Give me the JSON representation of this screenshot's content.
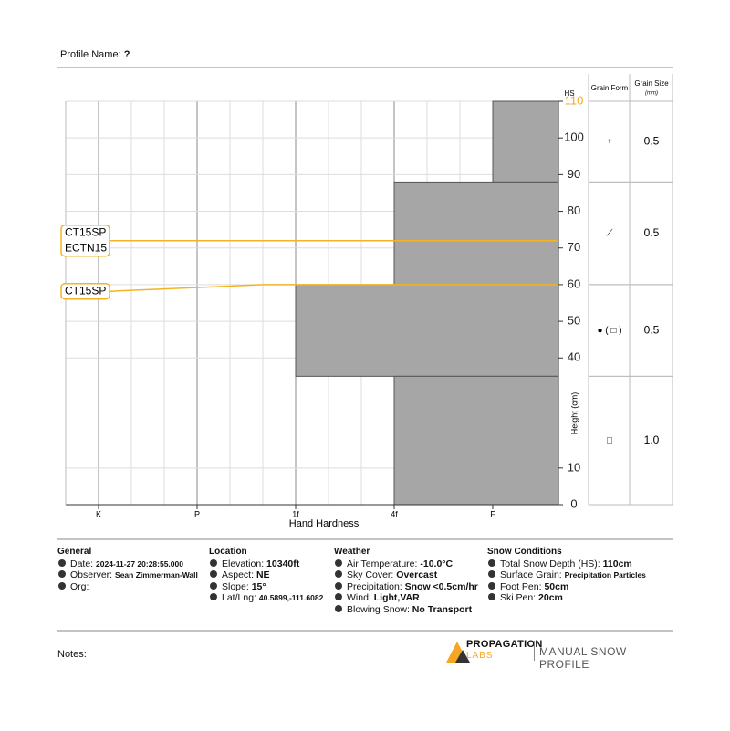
{
  "profile": {
    "label": "Profile Name:",
    "value": "?"
  },
  "chart_data": {
    "type": "snow-profile",
    "x_label": "Hand Hardness",
    "y_label": "Height (cm)",
    "hs_label": "HS",
    "categories": [
      "K",
      "P",
      "1f",
      "4f",
      "F"
    ],
    "ylim": [
      0,
      110
    ],
    "yticks": [
      0,
      10,
      40,
      50,
      60,
      70,
      80,
      90,
      100,
      110
    ],
    "grid": true,
    "layer_color": "#a6a6a6",
    "test_color": "#f5b324",
    "hs_color": "#f5a623",
    "layers": [
      {
        "top": 110,
        "bottom": 88,
        "hardness": "F",
        "grain_form": "+",
        "grain_size": "0.5"
      },
      {
        "top": 88,
        "bottom": 60,
        "hardness": "4f",
        "grain_form": "⟋",
        "grain_size": "0.5"
      },
      {
        "top": 60,
        "bottom": 35,
        "hardness": "1f",
        "grain_form": "● ( □ )",
        "grain_size": "0.5"
      },
      {
        "top": 35,
        "bottom": 0,
        "hardness": "4f",
        "grain_form": "□",
        "grain_size": "1.0"
      }
    ],
    "tests": [
      {
        "labels": [
          "CT15SP",
          "ECTN15"
        ],
        "height": 72
      },
      {
        "labels": [
          "CT15SP"
        ],
        "height": 60
      }
    ]
  },
  "grain_table": {
    "form_header": "Grain Form",
    "size_header": "Grain Size",
    "size_unit": "(mm)"
  },
  "info": [
    {
      "title": "General",
      "items": [
        {
          "label": "Date:",
          "value": "2024-11-27 20:28:55.000",
          "small": true
        },
        {
          "label": "Observer:",
          "value": "Sean Zimmerman-Wall",
          "small": true
        },
        {
          "label": "Org:",
          "value": ""
        }
      ]
    },
    {
      "title": "Location",
      "items": [
        {
          "label": "Elevation:",
          "value": "10340ft"
        },
        {
          "label": "Aspect:",
          "value": "NE"
        },
        {
          "label": "Slope:",
          "value": "15°"
        },
        {
          "label": "Lat/Lng:",
          "value": "40.5899,-111.6082",
          "small": true
        }
      ]
    },
    {
      "title": "Weather",
      "items": [
        {
          "label": "Air Temperature:",
          "value": "-10.0°C"
        },
        {
          "label": "Sky Cover:",
          "value": "Overcast"
        },
        {
          "label": "Precipitation:",
          "value": "Snow <0.5cm/hr"
        },
        {
          "label": "Wind:",
          "value": "Light,VAR"
        },
        {
          "label": "Blowing Snow:",
          "value": "No Transport"
        }
      ]
    },
    {
      "title": "Snow Conditions",
      "items": [
        {
          "label": "Total Snow Depth (HS):",
          "value": "110cm"
        },
        {
          "label": "Surface Grain:",
          "value": "Precipitation Particles",
          "small": true
        },
        {
          "label": "Foot Pen:",
          "value": "50cm"
        },
        {
          "label": "Ski Pen:",
          "value": "20cm"
        }
      ]
    }
  ],
  "notes": "Notes:",
  "brand": {
    "name": "PROPAGATION",
    "sub": "LABS",
    "product": "MANUAL SNOW PROFILE"
  }
}
